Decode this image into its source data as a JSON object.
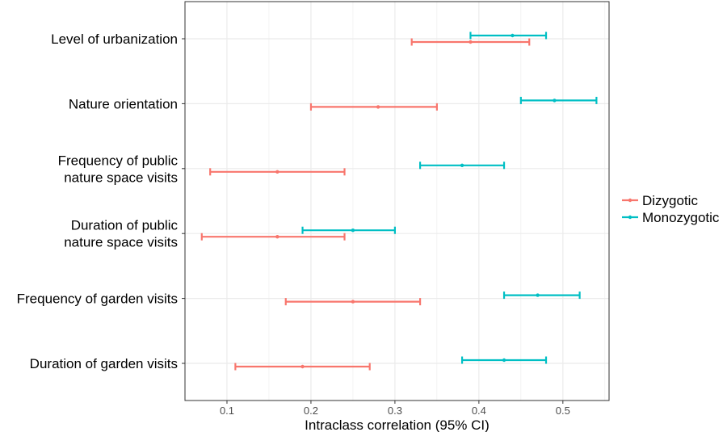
{
  "chart_data": {
    "type": "forest",
    "title": "",
    "xlabel": "Intraclass correlation (95% CI)",
    "ylabel": "",
    "xlim": [
      0.05,
      0.555
    ],
    "x_ticks": [
      "0.1",
      "0.2",
      "0.3",
      "0.4",
      "0.5"
    ],
    "x_tick_values": [
      0.1,
      0.2,
      0.3,
      0.4,
      0.5
    ],
    "grid": true,
    "legend_position": "right",
    "categories": [
      {
        "lines": [
          "Level of urbanization"
        ]
      },
      {
        "lines": [
          "Nature orientation"
        ]
      },
      {
        "lines": [
          "Frequency of public",
          "nature space visits"
        ]
      },
      {
        "lines": [
          "Duration of public",
          "nature space visits"
        ]
      },
      {
        "lines": [
          "Frequency of garden visits"
        ]
      },
      {
        "lines": [
          "Duration of garden visits"
        ]
      }
    ],
    "series": [
      {
        "name": "Dizygotic",
        "color": "#F8766D",
        "points": [
          {
            "est": 0.39,
            "lo": 0.32,
            "hi": 0.46
          },
          {
            "est": 0.28,
            "lo": 0.2,
            "hi": 0.35
          },
          {
            "est": 0.16,
            "lo": 0.08,
            "hi": 0.24
          },
          {
            "est": 0.16,
            "lo": 0.07,
            "hi": 0.24
          },
          {
            "est": 0.25,
            "lo": 0.17,
            "hi": 0.33
          },
          {
            "est": 0.19,
            "lo": 0.11,
            "hi": 0.27
          }
        ]
      },
      {
        "name": "Monozygotic",
        "color": "#00BFC4",
        "points": [
          {
            "est": 0.44,
            "lo": 0.39,
            "hi": 0.48
          },
          {
            "est": 0.49,
            "lo": 0.45,
            "hi": 0.54
          },
          {
            "est": 0.38,
            "lo": 0.33,
            "hi": 0.43
          },
          {
            "est": 0.25,
            "lo": 0.19,
            "hi": 0.3
          },
          {
            "est": 0.47,
            "lo": 0.43,
            "hi": 0.52
          },
          {
            "est": 0.43,
            "lo": 0.38,
            "hi": 0.48
          }
        ]
      }
    ]
  }
}
